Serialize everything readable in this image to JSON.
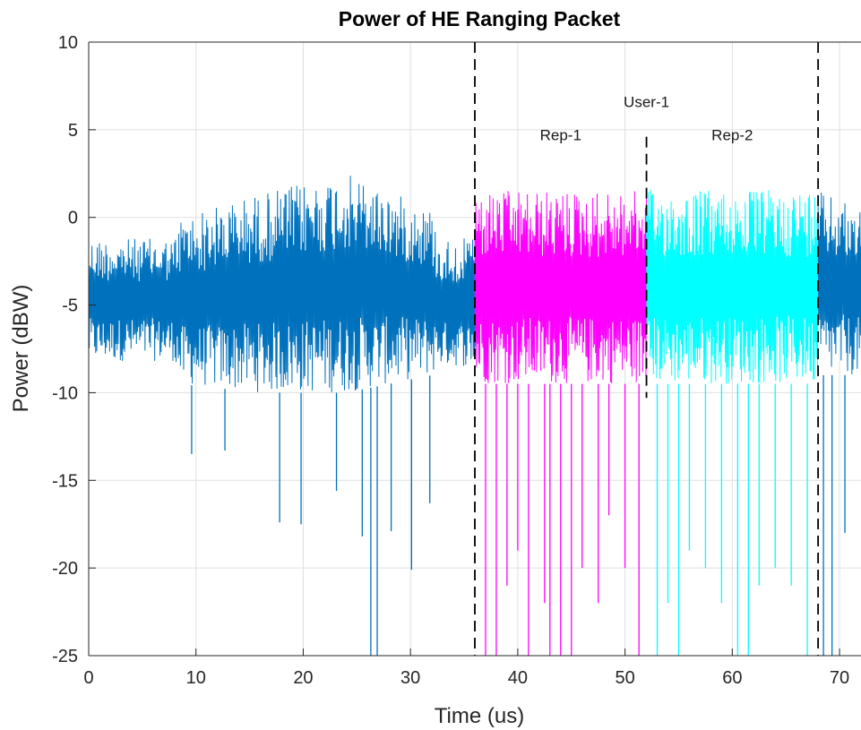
{
  "chart_data": {
    "type": "line",
    "title": "Power of HE Ranging Packet",
    "xlabel": "Time (us)",
    "ylabel": "Power (dBW)",
    "xlim": [
      0,
      72
    ],
    "ylim": [
      -25,
      10
    ],
    "x_ticks": [
      0,
      10,
      20,
      30,
      40,
      50,
      60,
      70
    ],
    "y_ticks": [
      10,
      5,
      0,
      -5,
      -10,
      -15,
      -20,
      -25
    ],
    "grid": true,
    "colors": {
      "preamble": "#0072BD",
      "rep1": "#FF00FF",
      "rep2": "#00FFFF",
      "boundary": "#000000"
    },
    "series": [
      {
        "segment": "preamble",
        "x_range": [
          0,
          36
        ],
        "envelope": [
          {
            "x": 0,
            "low": -8.2,
            "high": -1.2
          },
          {
            "x": 8,
            "low": -8.2,
            "high": -1.2
          },
          {
            "x": 8.5,
            "low": -9.5,
            "high": 0
          },
          {
            "x": 16,
            "low": -10,
            "high": 1.4
          },
          {
            "x": 24,
            "low": -10,
            "high": 2.5
          },
          {
            "x": 32,
            "low": -9,
            "high": 0.5
          },
          {
            "x": 32.5,
            "low": -8.5,
            "high": -1.2
          },
          {
            "x": 36,
            "low": -8.5,
            "high": -1.2
          }
        ],
        "dips": [
          {
            "x": 9.6,
            "y": -13.5
          },
          {
            "x": 12.7,
            "y": -13.3
          },
          {
            "x": 17.8,
            "y": -17.4
          },
          {
            "x": 19.8,
            "y": -17.5
          },
          {
            "x": 23.1,
            "y": -15.6
          },
          {
            "x": 25.5,
            "y": -18.2
          },
          {
            "x": 26.3,
            "y": -25
          },
          {
            "x": 26.9,
            "y": -25
          },
          {
            "x": 28.2,
            "y": -17.9
          },
          {
            "x": 30.1,
            "y": -20.1
          },
          {
            "x": 31.8,
            "y": -16.3
          }
        ]
      },
      {
        "segment": "rep1",
        "x_range": [
          36,
          52
        ],
        "envelope": [
          {
            "x": 36,
            "low": -9.5,
            "high": 1.5
          },
          {
            "x": 52,
            "low": -9.5,
            "high": 1.5
          }
        ],
        "dips": [
          {
            "x": 37,
            "y": -25
          },
          {
            "x": 38,
            "y": -25
          },
          {
            "x": 39,
            "y": -21
          },
          {
            "x": 40,
            "y": -19
          },
          {
            "x": 41,
            "y": -25
          },
          {
            "x": 42.5,
            "y": -22
          },
          {
            "x": 43,
            "y": -25
          },
          {
            "x": 44,
            "y": -25
          },
          {
            "x": 45,
            "y": -25
          },
          {
            "x": 46,
            "y": -20
          },
          {
            "x": 47.5,
            "y": -22
          },
          {
            "x": 48.5,
            "y": -17
          },
          {
            "x": 50,
            "y": -20
          },
          {
            "x": 51.3,
            "y": -25
          }
        ]
      },
      {
        "segment": "rep2",
        "x_range": [
          52,
          68
        ],
        "envelope": [
          {
            "x": 52,
            "low": -9.5,
            "high": 1.6
          },
          {
            "x": 68,
            "low": -9.5,
            "high": 1.6
          }
        ],
        "dips": [
          {
            "x": 53,
            "y": -25
          },
          {
            "x": 54,
            "y": -22
          },
          {
            "x": 55,
            "y": -25
          },
          {
            "x": 56,
            "y": -19
          },
          {
            "x": 57.5,
            "y": -20
          },
          {
            "x": 59,
            "y": -22
          },
          {
            "x": 60.5,
            "y": -25
          },
          {
            "x": 61.5,
            "y": -25
          },
          {
            "x": 62.5,
            "y": -21
          },
          {
            "x": 64,
            "y": -20
          },
          {
            "x": 65.5,
            "y": -21
          },
          {
            "x": 67,
            "y": -25
          }
        ]
      },
      {
        "segment": "preamble",
        "x_range": [
          68,
          72
        ],
        "envelope": [
          {
            "x": 68,
            "low": -9,
            "high": 1.5
          },
          {
            "x": 72,
            "low": -9,
            "high": 0.5
          }
        ],
        "dips": [
          {
            "x": 68.5,
            "y": -25
          },
          {
            "x": 69.3,
            "y": -25
          },
          {
            "x": 70.5,
            "y": -18
          }
        ]
      }
    ],
    "boundaries": [
      {
        "x": 36,
        "y_range": [
          -25,
          10
        ]
      },
      {
        "x": 52,
        "y_range": [
          -10.3,
          4.6
        ]
      },
      {
        "x": 68,
        "y_range": [
          -25,
          10
        ]
      }
    ],
    "annotations": [
      {
        "text": "User-1",
        "x": 52,
        "y": 6.3
      },
      {
        "text": "Rep-1",
        "x": 44,
        "y": 4.4
      },
      {
        "text": "Rep-2",
        "x": 60,
        "y": 4.4
      }
    ]
  }
}
